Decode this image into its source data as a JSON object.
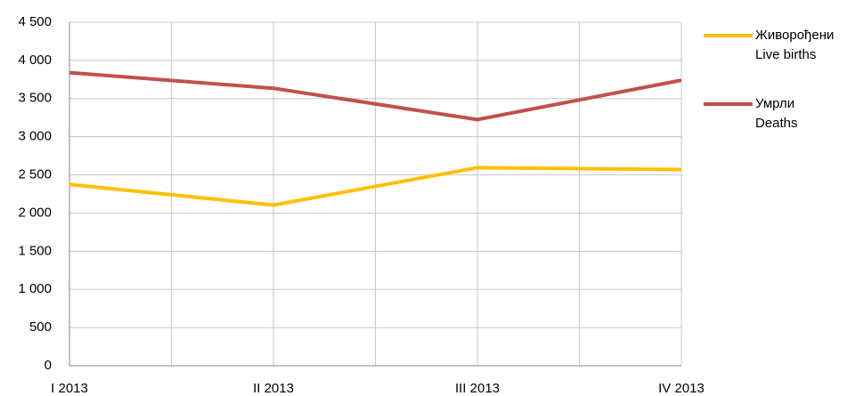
{
  "chart_data": {
    "type": "line",
    "categories": [
      "I 2013",
      "II 2013",
      "III 2013",
      "IV 2013"
    ],
    "series": [
      {
        "name": "Живорођени",
        "name_en": "Live births",
        "color": "#ffc000",
        "values": [
          2375,
          2105,
          2595,
          2570
        ]
      },
      {
        "name": "Умрли",
        "name_en": "Deaths",
        "color": "#c0504d",
        "values": [
          3840,
          3635,
          3225,
          3740
        ]
      }
    ],
    "ylim": [
      0,
      4500
    ],
    "yticks": [
      0,
      500,
      {
        "value": 1000,
        "label": "1 000"
      },
      {
        "value": 1500,
        "label": "1 500"
      },
      {
        "value": 2000,
        "label": "2 000"
      },
      {
        "value": 2500,
        "label": "2 500"
      },
      {
        "value": 3000,
        "label": "3 000"
      },
      {
        "value": 3500,
        "label": "3 500"
      },
      {
        "value": 4000,
        "label": "4 000"
      },
      {
        "value": 4500,
        "label": "4 500"
      }
    ],
    "grid": true
  }
}
